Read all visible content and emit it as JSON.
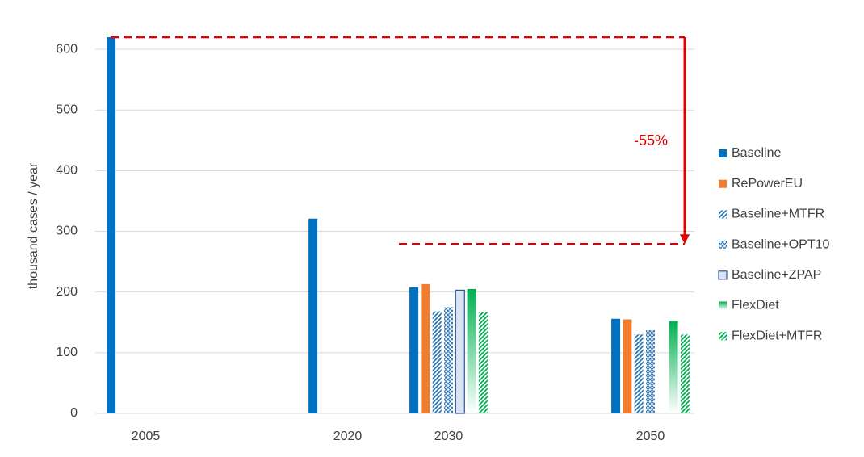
{
  "chart_data": {
    "type": "bar",
    "y_label": "thousand cases / year",
    "categories": [
      "2005",
      null,
      "2020",
      "2030",
      null,
      "2050"
    ],
    "series": [
      {
        "name": "Baseline",
        "color": "#0070c0",
        "pattern": "solid",
        "values": [
          620,
          null,
          321,
          208,
          null,
          156
        ]
      },
      {
        "name": "RePowerEU",
        "color": "#ed7d31",
        "pattern": "solid",
        "values": [
          null,
          null,
          null,
          213,
          null,
          155
        ]
      },
      {
        "name": "Baseline+MTFR",
        "color": "#2e75b6",
        "pattern": "hatch",
        "values": [
          null,
          null,
          null,
          168,
          null,
          130
        ]
      },
      {
        "name": "Baseline+OPT10",
        "color": "#2e75b6",
        "pattern": "cross",
        "values": [
          null,
          null,
          null,
          175,
          null,
          137
        ]
      },
      {
        "name": "Baseline+ZPAP",
        "color": "#2f5597",
        "pattern": "outline",
        "values": [
          null,
          null,
          null,
          203,
          null,
          null
        ]
      },
      {
        "name": "FlexDiet",
        "color": "#00b050",
        "pattern": "gradient",
        "values": [
          null,
          null,
          null,
          205,
          null,
          152
        ]
      },
      {
        "name": "FlexDiet+MTFR",
        "color": "#00b050",
        "pattern": "hatch",
        "values": [
          null,
          null,
          null,
          167,
          null,
          130
        ]
      }
    ],
    "ylim": [
      0,
      620
    ],
    "yticks": [
      0,
      100,
      200,
      300,
      400,
      500,
      600
    ],
    "grid": true,
    "legend": "right",
    "annotation": {
      "text": "-55%",
      "from": 620,
      "to": 279,
      "color": "#e00000"
    }
  }
}
